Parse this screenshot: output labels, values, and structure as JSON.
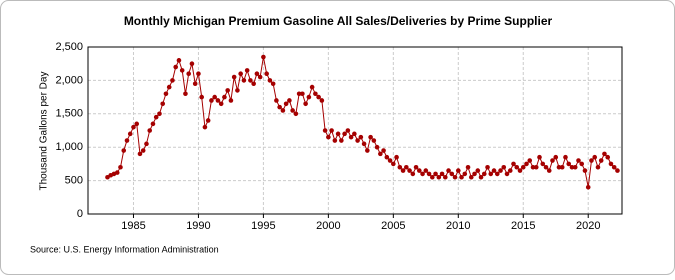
{
  "chart_data": {
    "type": "line",
    "title": "Monthly Michigan Premium Gasoline All Sales/Deliveries by Prime Supplier",
    "y_label": "Thousand Gallons per Day",
    "source": "Source: U.S. Energy Information Administration",
    "x": [
      1983,
      1983.25,
      1983.5,
      1983.75,
      1984,
      1984.25,
      1984.5,
      1984.75,
      1985,
      1985.25,
      1985.5,
      1985.75,
      1986,
      1986.25,
      1986.5,
      1986.75,
      1987,
      1987.25,
      1987.5,
      1987.75,
      1988,
      1988.25,
      1988.5,
      1988.75,
      1989,
      1989.25,
      1989.5,
      1989.75,
      1990,
      1990.25,
      1990.5,
      1990.75,
      1991,
      1991.25,
      1991.5,
      1991.75,
      1992,
      1992.25,
      1992.5,
      1992.75,
      1993,
      1993.25,
      1993.5,
      1993.75,
      1994,
      1994.25,
      1994.5,
      1994.75,
      1995,
      1995.25,
      1995.5,
      1995.75,
      1996,
      1996.25,
      1996.5,
      1996.75,
      1997,
      1997.25,
      1997.5,
      1997.75,
      1998,
      1998.25,
      1998.5,
      1998.75,
      1999,
      1999.25,
      1999.5,
      1999.75,
      2000,
      2000.25,
      2000.5,
      2000.75,
      2001,
      2001.25,
      2001.5,
      2001.75,
      2002,
      2002.25,
      2002.5,
      2002.75,
      2003,
      2003.25,
      2003.5,
      2003.75,
      2004,
      2004.25,
      2004.5,
      2004.75,
      2005,
      2005.25,
      2005.5,
      2005.75,
      2006,
      2006.25,
      2006.5,
      2006.75,
      2007,
      2007.25,
      2007.5,
      2007.75,
      2008,
      2008.25,
      2008.5,
      2008.75,
      2009,
      2009.25,
      2009.5,
      2009.75,
      2010,
      2010.25,
      2010.5,
      2010.75,
      2011,
      2011.25,
      2011.5,
      2011.75,
      2012,
      2012.25,
      2012.5,
      2012.75,
      2013,
      2013.25,
      2013.5,
      2013.75,
      2014,
      2014.25,
      2014.5,
      2014.75,
      2015,
      2015.25,
      2015.5,
      2015.75,
      2016,
      2016.25,
      2016.5,
      2016.75,
      2017,
      2017.25,
      2017.5,
      2017.75,
      2018,
      2018.25,
      2018.5,
      2018.75,
      2019,
      2019.25,
      2019.5,
      2019.75,
      2020,
      2020.25,
      2020.5,
      2020.75,
      2021,
      2021.25,
      2021.5,
      2021.75,
      2022,
      2022.25
    ],
    "series": [
      {
        "color": "#a50000",
        "values": [
          550,
          580,
          600,
          620,
          700,
          950,
          1100,
          1200,
          1300,
          1350,
          900,
          950,
          1050,
          1250,
          1350,
          1450,
          1500,
          1650,
          1800,
          1900,
          2000,
          2200,
          2300,
          2150,
          1800,
          2100,
          2250,
          1950,
          2100,
          1750,
          1300,
          1400,
          1700,
          1750,
          1700,
          1650,
          1750,
          1850,
          1700,
          2050,
          1850,
          2100,
          2000,
          2150,
          2000,
          1950,
          2100,
          2050,
          2350,
          2100,
          2000,
          1950,
          1700,
          1600,
          1550,
          1650,
          1700,
          1550,
          1500,
          1800,
          1800,
          1650,
          1750,
          1900,
          1800,
          1750,
          1700,
          1250,
          1150,
          1250,
          1100,
          1200,
          1100,
          1200,
          1250,
          1150,
          1200,
          1100,
          1150,
          1050,
          950,
          1150,
          1100,
          1000,
          900,
          950,
          850,
          800,
          750,
          850,
          700,
          650,
          700,
          650,
          600,
          700,
          650,
          600,
          650,
          600,
          550,
          600,
          550,
          600,
          550,
          650,
          600,
          550,
          650,
          550,
          600,
          700,
          550,
          600,
          650,
          550,
          600,
          700,
          600,
          650,
          600,
          650,
          700,
          600,
          650,
          750,
          700,
          650,
          700,
          750,
          800,
          700,
          700,
          850,
          750,
          700,
          650,
          800,
          850,
          700,
          700,
          850,
          750,
          700,
          700,
          800,
          750,
          650,
          400,
          800,
          850,
          700,
          800,
          900,
          850,
          750,
          700,
          650
        ]
      }
    ],
    "xlim": [
      1981.5,
      2022.6
    ],
    "xticks": [
      1985,
      1990,
      1995,
      2000,
      2005,
      2010,
      2015,
      2020
    ],
    "ylim": [
      0,
      2500
    ],
    "yticks": [
      0,
      500,
      {
        "value": 1000,
        "label": "1,000"
      },
      {
        "value": 1500,
        "label": "1,500"
      },
      {
        "value": 2000,
        "label": "2,000"
      },
      {
        "value": 2500,
        "label": "2,500"
      }
    ],
    "grid": true
  }
}
